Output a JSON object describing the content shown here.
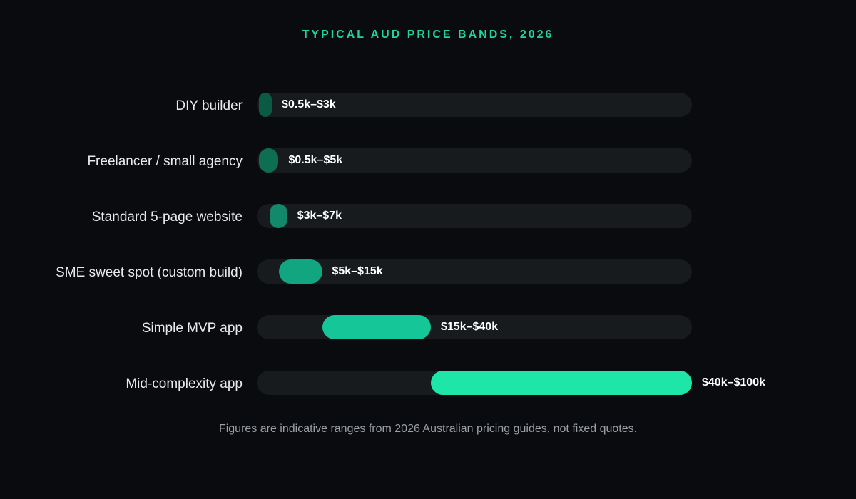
{
  "chart_data": {
    "type": "bar",
    "title": "TYPICAL AUD PRICE BANDS, 2026",
    "xlim": [
      0,
      100
    ],
    "unit": "AUD thousands",
    "categories": [
      "DIY builder",
      "Freelancer / small agency",
      "Standard 5-page website",
      "SME sweet spot (custom build)",
      "Simple MVP app",
      "Mid-complexity app"
    ],
    "ranges": [
      {
        "low": 0.5,
        "high": 3,
        "label": "$0.5k–$3k",
        "color": "#0b5a43"
      },
      {
        "low": 0.5,
        "high": 5,
        "label": "$0.5k–$5k",
        "color": "#0d6e52"
      },
      {
        "low": 3,
        "high": 7,
        "label": "$3k–$7k",
        "color": "#11896a"
      },
      {
        "low": 5,
        "high": 15,
        "label": "$5k–$15k",
        "color": "#11a680"
      },
      {
        "low": 15,
        "high": 40,
        "label": "$15k–$40k",
        "color": "#15c798"
      },
      {
        "low": 40,
        "high": 100,
        "label": "$40k–$100k",
        "color": "#1de6a8"
      }
    ]
  },
  "footnote": "Figures are indicative ranges from 2026 Australian pricing guides, not fixed quotes."
}
